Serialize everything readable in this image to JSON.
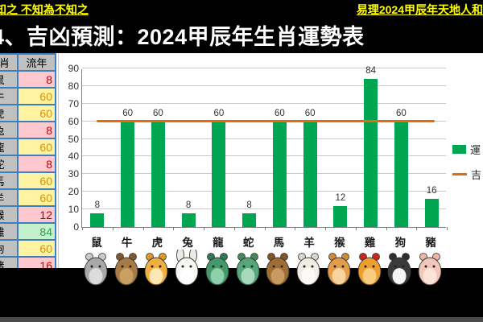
{
  "top_bar": {
    "left_link": "知之 不知為不知之",
    "right_link": "易理2024甲辰年天地人和"
  },
  "title": "4、吉凶預測：2024甲辰年生肖運勢表",
  "table": {
    "headers": [
      "生肖",
      "流年"
    ],
    "rows": [
      {
        "zodiac": "鼠",
        "value": "8",
        "status": "bad"
      },
      {
        "zodiac": "牛",
        "value": "60",
        "status": "neutral"
      },
      {
        "zodiac": "虎",
        "value": "60",
        "status": "neutral"
      },
      {
        "zodiac": "兔",
        "value": "8",
        "status": "bad"
      },
      {
        "zodiac": "龍",
        "value": "60",
        "status": "neutral"
      },
      {
        "zodiac": "蛇",
        "value": "8",
        "status": "bad"
      },
      {
        "zodiac": "馬",
        "value": "60",
        "status": "neutral"
      },
      {
        "zodiac": "羊",
        "value": "60",
        "status": "neutral"
      },
      {
        "zodiac": "猴",
        "value": "12",
        "status": "bad"
      },
      {
        "zodiac": "雞",
        "value": "84",
        "status": "good"
      },
      {
        "zodiac": "狗",
        "value": "60",
        "status": "neutral"
      },
      {
        "zodiac": "豬",
        "value": "16",
        "status": "bad"
      }
    ]
  },
  "colors": {
    "bad": {
      "bg": "#FFC7CE",
      "text": "#C00000"
    },
    "neutral": {
      "bg": "#FFF3A1",
      "text": "#DB9200"
    },
    "good": {
      "bg": "#C6EFCE",
      "text": "#2E9E4F"
    },
    "link_yellow": "#FFFF00",
    "bar_green": "#00A551",
    "line_orange": "#E36C09"
  },
  "chart_data": {
    "type": "bar",
    "categories": [
      "鼠",
      "牛",
      "虎",
      "兔",
      "龍",
      "蛇",
      "馬",
      "羊",
      "猴",
      "雞",
      "狗",
      "豬"
    ],
    "values": [
      8,
      60,
      60,
      8,
      60,
      8,
      60,
      60,
      12,
      84,
      60,
      16
    ],
    "ylim": [
      0,
      90
    ],
    "ytick_step": 10,
    "grid": true,
    "bar_color": "#00A551",
    "threshold": {
      "value": 60,
      "color": "#E36C09"
    },
    "legend": [
      {
        "label": "運",
        "type": "bar"
      },
      {
        "label": "吉",
        "type": "line"
      }
    ],
    "legend_position": "right",
    "data_labels": true
  },
  "zodiac_icons": [
    {
      "name": "rat",
      "body": "#A9A9A9",
      "belly": "#DCDCDC",
      "ear": "#C9C9C9",
      "long_ears": false
    },
    {
      "name": "ox",
      "body": "#A87A44",
      "belly": "#C99F63",
      "ear": "#7E5A2B",
      "long_ears": false
    },
    {
      "name": "tiger",
      "body": "#EFB041",
      "belly": "#FCE6B2",
      "ear": "#D99A2B",
      "long_ears": false
    },
    {
      "name": "rabbit",
      "body": "#F7F6F1",
      "belly": "#FFFFFF",
      "ear": "#EDEBE3",
      "long_ears": true
    },
    {
      "name": "dragon",
      "body": "#43996B",
      "belly": "#8FD0AC",
      "ear": "#2F7A52",
      "long_ears": false
    },
    {
      "name": "snake",
      "body": "#55A878",
      "belly": "#A6DABB",
      "ear": "#3F8A5E",
      "long_ears": false
    },
    {
      "name": "horse",
      "body": "#9F6C34",
      "belly": "#C79A5F",
      "ear": "#845423",
      "long_ears": false
    },
    {
      "name": "goat",
      "body": "#EFEDE6",
      "belly": "#FBFAF6",
      "ear": "#D8D5CA",
      "long_ears": false
    },
    {
      "name": "monkey",
      "body": "#E39C48",
      "belly": "#F6D3A0",
      "ear": "#D18A35",
      "long_ears": false
    },
    {
      "name": "rooster",
      "body": "#ED9E2E",
      "belly": "#F7CD7E",
      "ear": "#C8271E",
      "long_ears": false
    },
    {
      "name": "dog",
      "body": "#3B3B3B",
      "belly": "#F5F5F5",
      "ear": "#2E2E2E",
      "long_ears": false
    },
    {
      "name": "pig",
      "body": "#F2C6B8",
      "belly": "#FBE3DA",
      "ear": "#EFB4A4",
      "long_ears": false
    }
  ]
}
